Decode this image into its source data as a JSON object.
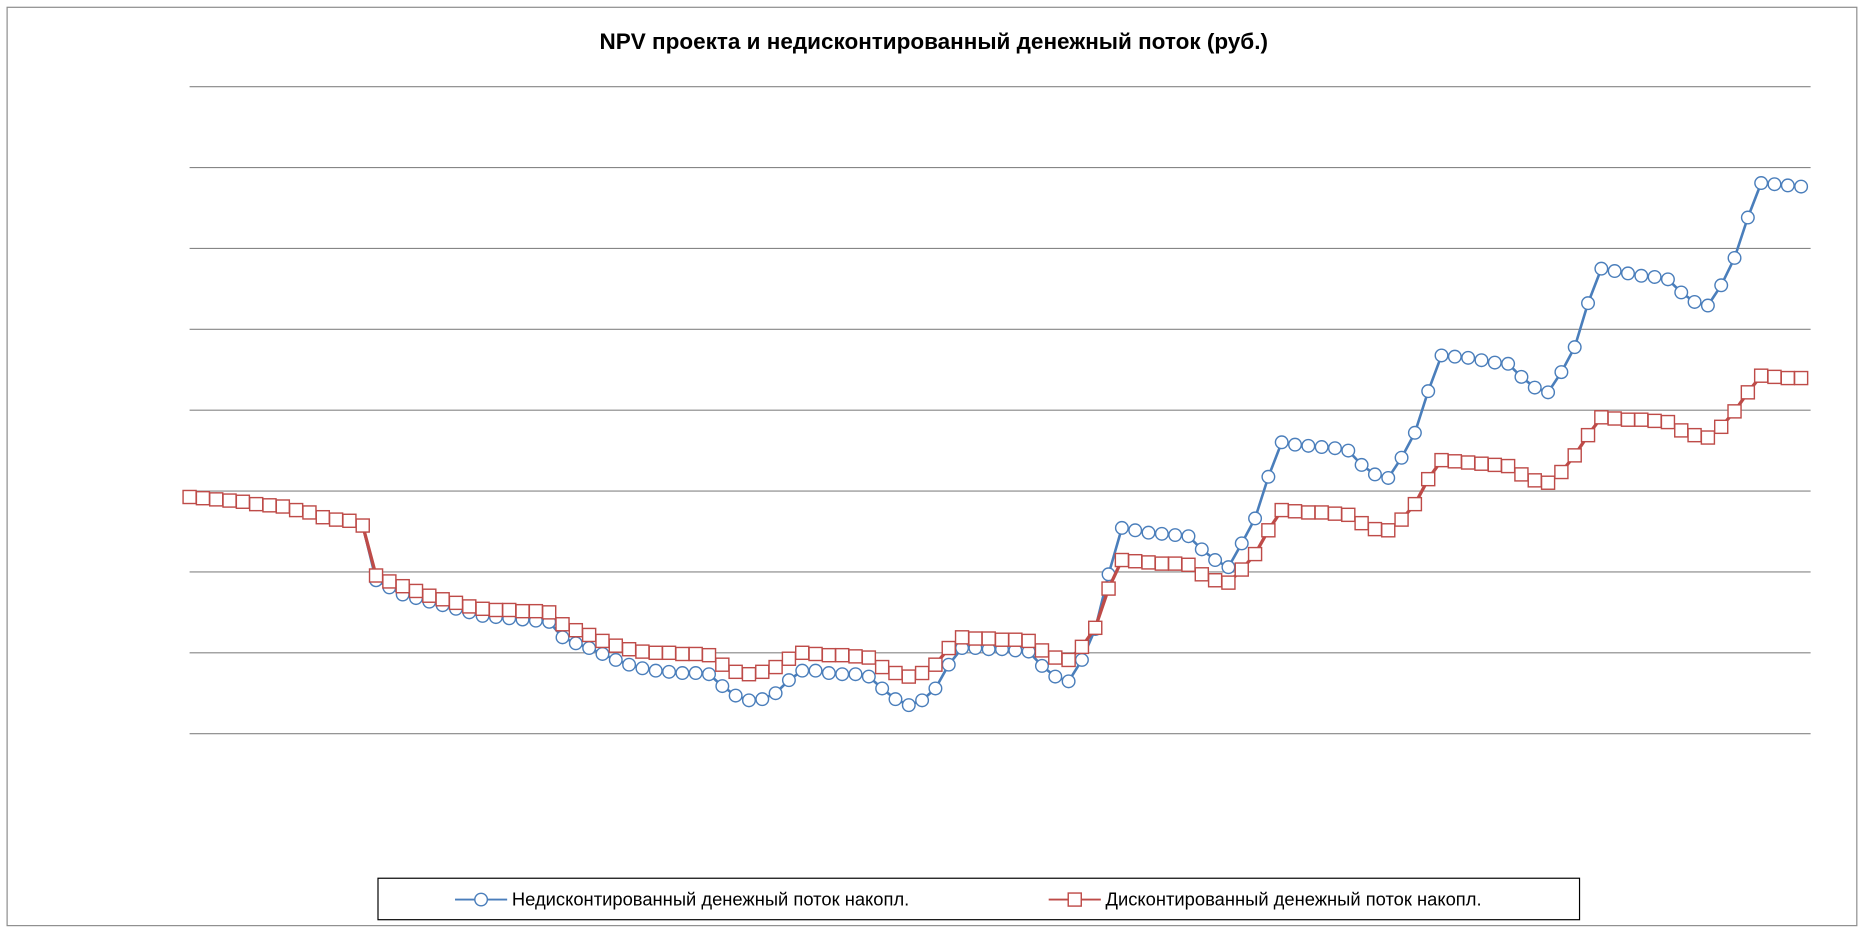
{
  "chart_data": {
    "type": "line",
    "title": "NPV проекта и недисконтированный денежный поток (руб.)",
    "ylim": [
      -204,
      340
    ],
    "yticks": [
      -204,
      -136,
      -68,
      0,
      68,
      136,
      204,
      272,
      340
    ],
    "grid": true,
    "tick_labels": false,
    "legend": "bottom",
    "series": [
      {
        "name": "Недисконтированный денежный поток накопл.",
        "color": "#4a7ebb",
        "marker": "circle",
        "values": [
          -5,
          -6,
          -7,
          -8,
          -9,
          -11,
          -12,
          -13,
          -16,
          -18,
          -22,
          -24,
          -25,
          -29,
          -75,
          -81,
          -87,
          -90,
          -93,
          -96,
          -99,
          -102,
          -105,
          -106,
          -107,
          -108,
          -109,
          -110,
          -123,
          -128,
          -132,
          -137,
          -142,
          -146,
          -149,
          -151,
          -152,
          -153,
          -153,
          -154,
          -164,
          -172,
          -176,
          -175,
          -170,
          -159,
          -151,
          -151,
          -153,
          -154,
          -154,
          -156,
          -166,
          -175,
          -180,
          -176,
          -166,
          -146,
          -132,
          -132,
          -133,
          -133,
          -134,
          -135,
          -147,
          -156,
          -160,
          -142,
          -116,
          -70,
          -31,
          -33,
          -35,
          -36,
          -37,
          -38,
          -49,
          -58,
          -64,
          -44,
          -23,
          12,
          41,
          39,
          38,
          37,
          36,
          34,
          22,
          14,
          11,
          28,
          49,
          84,
          114,
          113,
          112,
          110,
          108,
          107,
          96,
          87,
          83,
          100,
          121,
          158,
          187,
          185,
          183,
          181,
          180,
          178,
          167,
          159,
          156,
          173,
          196,
          230,
          259,
          258,
          257,
          256
        ]
      },
      {
        "name": "Дисконтированный денежный поток накопл.",
        "color": "#be4b48",
        "marker": "square",
        "values": [
          -5,
          -6,
          -7,
          -8,
          -9,
          -11,
          -12,
          -13,
          -16,
          -18,
          -22,
          -24,
          -25,
          -29,
          -71,
          -76,
          -80,
          -84,
          -88,
          -91,
          -94,
          -97,
          -99,
          -100,
          -100,
          -101,
          -101,
          -102,
          -112,
          -117,
          -121,
          -126,
          -130,
          -133,
          -135,
          -136,
          -136,
          -137,
          -137,
          -138,
          -146,
          -152,
          -154,
          -152,
          -148,
          -141,
          -136,
          -137,
          -138,
          -138,
          -139,
          -140,
          -148,
          -153,
          -156,
          -153,
          -146,
          -132,
          -123,
          -124,
          -124,
          -125,
          -125,
          -126,
          -134,
          -140,
          -142,
          -131,
          -115,
          -82,
          -58,
          -59,
          -60,
          -61,
          -61,
          -62,
          -70,
          -75,
          -77,
          -66,
          -53,
          -33,
          -16,
          -17,
          -18,
          -18,
          -19,
          -20,
          -27,
          -32,
          -33,
          -24,
          -11,
          10,
          26,
          25,
          24,
          23,
          22,
          21,
          14,
          9,
          7,
          16,
          30,
          47,
          62,
          61,
          60,
          60,
          59,
          58,
          51,
          47,
          45,
          54,
          67,
          83,
          97,
          96,
          95,
          95
        ]
      }
    ]
  }
}
